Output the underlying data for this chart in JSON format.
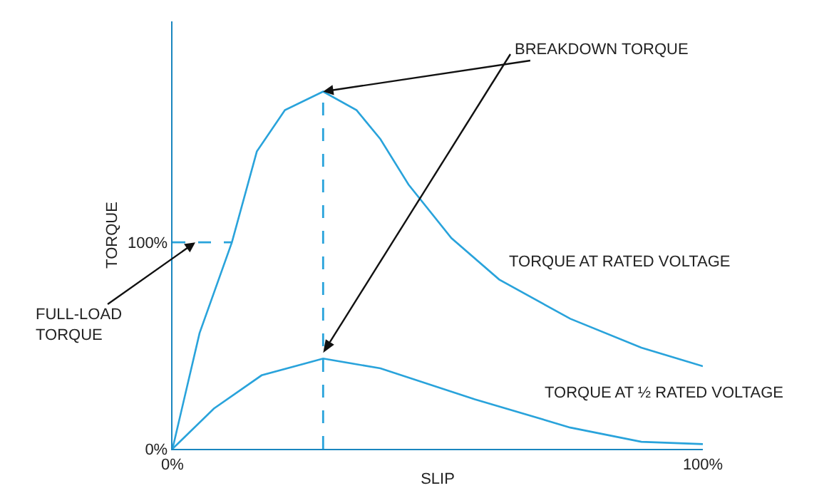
{
  "chart_data": {
    "type": "line",
    "xlabel": "SLIP",
    "ylabel": "TORQUE",
    "xlim": [
      0,
      100
    ],
    "ylim": [
      0,
      207
    ],
    "xticks": [
      {
        "value": 0,
        "label": "0%"
      },
      {
        "value": 100,
        "label": "100%"
      }
    ],
    "yticks": [
      {
        "value": 0,
        "label": "0%"
      },
      {
        "value": 100,
        "label": "100%"
      }
    ],
    "grid": false,
    "legend": false,
    "marker": "none",
    "line_style": "solid",
    "series": [
      {
        "name": "TORQUE AT RATED VOLTAGE",
        "color": "#29a3db",
        "x": [
          0,
          5.1,
          11.2,
          15.9,
          21.2,
          28.4,
          34.7,
          39.2,
          44.5,
          52.6,
          61.6,
          75,
          88.4,
          100
        ],
        "values": [
          0,
          56,
          100,
          144,
          164,
          173,
          164,
          150,
          128,
          102,
          82,
          63,
          49,
          40
        ]
      },
      {
        "name": "TORQUE AT ½ RATED VOLTAGE",
        "color": "#29a3db",
        "x": [
          0,
          7.8,
          16.8,
          28.4,
          39.2,
          57,
          75,
          88.4,
          100
        ],
        "values": [
          0,
          19.5,
          35.6,
          43.7,
          39,
          24,
          10.3,
          3.4,
          2.3
        ]
      }
    ],
    "ref_lines": [
      {
        "axis": "x",
        "value": 28.4,
        "color": "#29a3db",
        "line_style": "dashed"
      },
      {
        "axis": "y",
        "value": 100,
        "color": "#29a3db",
        "line_style": "dashed"
      }
    ],
    "annotations": [
      {
        "text": "BREAKDOWN TORQUE",
        "x": 28.4,
        "y": 173
      },
      {
        "text": "FULL-LOAD TORQUE",
        "x": 4.3,
        "y": 100
      }
    ]
  }
}
